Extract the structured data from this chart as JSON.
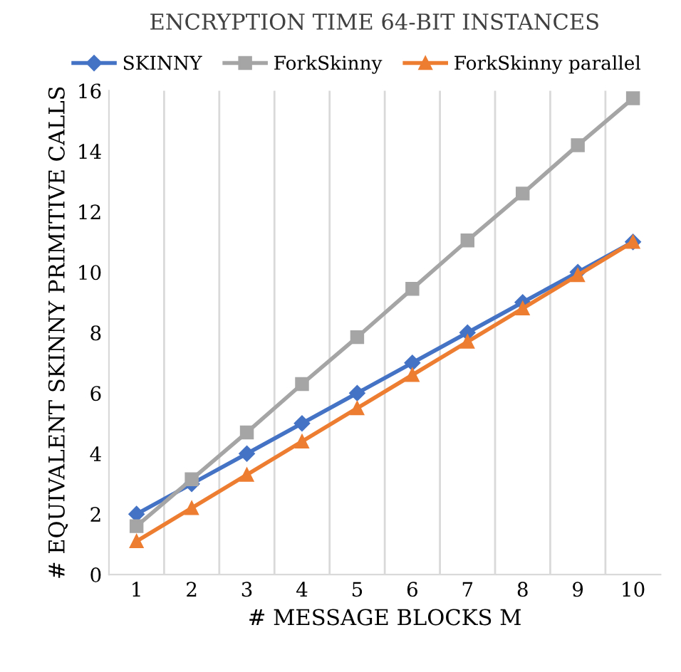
{
  "chart_data": {
    "type": "line",
    "title": "ENCRYPTION TIME 64-BIT INSTANCES",
    "xlabel": "# MESSAGE BLOCKS M",
    "ylabel": "# EQUIVALENT SKINNY PRIMITIVE CALLS",
    "categories": [
      "1",
      "2",
      "3",
      "4",
      "5",
      "6",
      "7",
      "8",
      "9",
      "10"
    ],
    "series": [
      {
        "name": "SKINNY",
        "color": "#4472c4",
        "marker": "diamond",
        "values": [
          2,
          3,
          4,
          5,
          6,
          7,
          8,
          9,
          10,
          11
        ]
      },
      {
        "name": "ForkSkinny",
        "color": "#a5a5a5",
        "marker": "square",
        "values": [
          1.6,
          3.15,
          4.7,
          6.3,
          7.85,
          9.45,
          11.05,
          12.6,
          14.2,
          15.75
        ]
      },
      {
        "name": "ForkSkinny parallel",
        "color": "#ed7d31",
        "marker": "triangle",
        "values": [
          1.1,
          2.2,
          3.3,
          4.4,
          5.5,
          6.6,
          7.7,
          8.8,
          9.9,
          11
        ]
      }
    ],
    "ylim": [
      0,
      16
    ],
    "yticks": [
      0,
      2,
      4,
      6,
      8,
      10,
      12,
      14,
      16
    ],
    "grid": "x",
    "legend": "top",
    "line_style": "solid"
  }
}
